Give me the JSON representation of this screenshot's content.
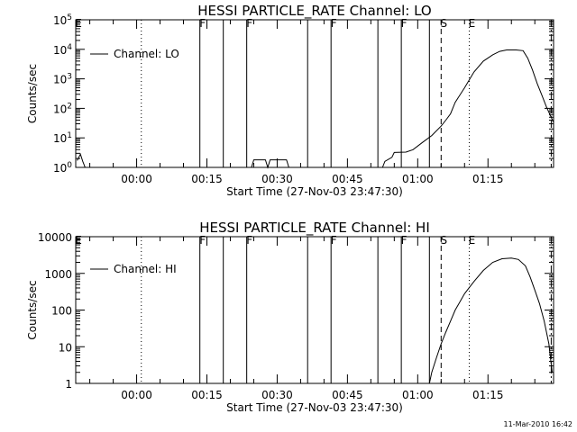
{
  "footer": {
    "timestamp": "11-Mar-2010 16:42"
  },
  "chart_data": [
    {
      "type": "line",
      "title": "HESSI PARTICLE_RATE Channel: LO",
      "xlabel": "Start Time (27-Nov-03 23:47:30)",
      "ylabel": "Counts/sec",
      "y_scale": "log",
      "xlim": [
        -13,
        89
      ],
      "ylim": [
        1,
        100000
      ],
      "x_ticks": [
        0,
        15,
        30,
        45,
        60,
        75
      ],
      "x_tick_labels": [
        "00:00",
        "00:15",
        "00:30",
        "00:45",
        "01:00",
        "01:15"
      ],
      "y_ticks": [
        1,
        10,
        100,
        1000,
        10000,
        100000
      ],
      "y_tick_labels": [
        "10^0",
        "10^1",
        "10^2",
        "10^3",
        "10^4",
        "10^5"
      ],
      "legend": {
        "position": "top-left",
        "entries": [
          "Channel: LO"
        ]
      },
      "series": [
        {
          "name": "Channel: LO",
          "segments": [
            [
              [
                -12.7,
                1.7
              ],
              [
                -12.0,
                2.8
              ],
              [
                -11.5,
                1.6
              ],
              [
                -11.0,
                1.0
              ]
            ],
            [
              [
                24.5,
                1.0
              ],
              [
                25.0,
                1.8
              ],
              [
                27.5,
                1.8
              ],
              [
                28.0,
                1.0
              ],
              [
                28.5,
                1.8
              ],
              [
                32.0,
                1.8
              ],
              [
                32.5,
                1.0
              ]
            ],
            [
              [
                52.5,
                1.0
              ],
              [
                53.0,
                1.6
              ],
              [
                54.5,
                2.2
              ],
              [
                55.0,
                3.2
              ],
              [
                57.5,
                3.3
              ],
              [
                59.0,
                4.0
              ],
              [
                61.0,
                7
              ],
              [
                63.0,
                12
              ],
              [
                65.0,
                25
              ],
              [
                66.0,
                40
              ],
              [
                67.0,
                65
              ],
              [
                68.0,
                160
              ],
              [
                70.0,
                500
              ],
              [
                72.0,
                1700
              ],
              [
                74.0,
                4000
              ],
              [
                76.0,
                6500
              ],
              [
                77.5,
                8500
              ],
              [
                79.0,
                9500
              ],
              [
                81.0,
                9500
              ],
              [
                82.5,
                9000
              ],
              [
                83.5,
                5000
              ],
              [
                84.5,
                2000
              ],
              [
                85.5,
                700
              ],
              [
                86.5,
                280
              ],
              [
                87.5,
                110
              ],
              [
                88.5,
                50
              ],
              [
                88.9,
                35
              ]
            ]
          ]
        }
      ],
      "markers": [
        {
          "x": -13,
          "label": "E",
          "style": "solid"
        },
        {
          "x": 1,
          "label": "",
          "style": "dotted"
        },
        {
          "x": 13.5,
          "label": "F",
          "style": "solid"
        },
        {
          "x": 18.5,
          "label": "",
          "style": "solid"
        },
        {
          "x": 23.5,
          "label": "F",
          "style": "solid"
        },
        {
          "x": 36.5,
          "label": "",
          "style": "solid"
        },
        {
          "x": 41.5,
          "label": "F",
          "style": "solid"
        },
        {
          "x": 51.5,
          "label": "",
          "style": "solid"
        },
        {
          "x": 56.5,
          "label": "F",
          "style": "solid"
        },
        {
          "x": 62.5,
          "label": "",
          "style": "solid"
        },
        {
          "x": 65.0,
          "label": "S",
          "style": "dashed"
        },
        {
          "x": 71.0,
          "label": "E",
          "style": "dotted"
        },
        {
          "x": 88.5,
          "label": "",
          "style": "dashdot"
        }
      ]
    },
    {
      "type": "line",
      "title": "HESSI PARTICLE_RATE Channel: HI",
      "xlabel": "Start Time (27-Nov-03 23:47:30)",
      "ylabel": "Counts/sec",
      "y_scale": "log",
      "xlim": [
        -13,
        89
      ],
      "ylim": [
        1,
        10000
      ],
      "x_ticks": [
        0,
        15,
        30,
        45,
        60,
        75
      ],
      "x_tick_labels": [
        "00:00",
        "00:15",
        "00:30",
        "00:45",
        "01:00",
        "01:15"
      ],
      "y_ticks": [
        1,
        10,
        100,
        1000,
        10000
      ],
      "y_tick_labels": [
        "1",
        "10",
        "100",
        "1000",
        "10000"
      ],
      "legend": {
        "position": "top-left",
        "entries": [
          "Channel: HI"
        ]
      },
      "series": [
        {
          "name": "Channel: HI",
          "segments": [
            [
              [
                62.5,
                1.0
              ],
              [
                63.0,
                2.0
              ],
              [
                64.0,
                5.0
              ],
              [
                65.0,
                12
              ],
              [
                66.0,
                25
              ],
              [
                67.0,
                50
              ],
              [
                68.0,
                100
              ],
              [
                70.0,
                280
              ],
              [
                72.0,
                600
              ],
              [
                74.0,
                1200
              ],
              [
                76.0,
                2000
              ],
              [
                78.0,
                2500
              ],
              [
                80.0,
                2600
              ],
              [
                81.5,
                2400
              ],
              [
                83.0,
                1600
              ],
              [
                84.0,
                800
              ],
              [
                85.0,
                350
              ],
              [
                86.0,
                150
              ],
              [
                87.0,
                50
              ],
              [
                88.0,
                12
              ],
              [
                88.7,
                2
              ]
            ]
          ]
        }
      ],
      "markers": [
        {
          "x": -13,
          "label": "E",
          "style": "solid"
        },
        {
          "x": 1,
          "label": "",
          "style": "dotted"
        },
        {
          "x": 13.5,
          "label": "F",
          "style": "solid"
        },
        {
          "x": 18.5,
          "label": "",
          "style": "solid"
        },
        {
          "x": 23.5,
          "label": "F",
          "style": "solid"
        },
        {
          "x": 36.5,
          "label": "",
          "style": "solid"
        },
        {
          "x": 41.5,
          "label": "F",
          "style": "solid"
        },
        {
          "x": 51.5,
          "label": "",
          "style": "solid"
        },
        {
          "x": 56.5,
          "label": "F",
          "style": "solid"
        },
        {
          "x": 62.5,
          "label": "",
          "style": "solid"
        },
        {
          "x": 65.0,
          "label": "S",
          "style": "dashed"
        },
        {
          "x": 71.0,
          "label": "E",
          "style": "dotted"
        },
        {
          "x": 88.5,
          "label": "",
          "style": "dashdot"
        }
      ]
    }
  ]
}
